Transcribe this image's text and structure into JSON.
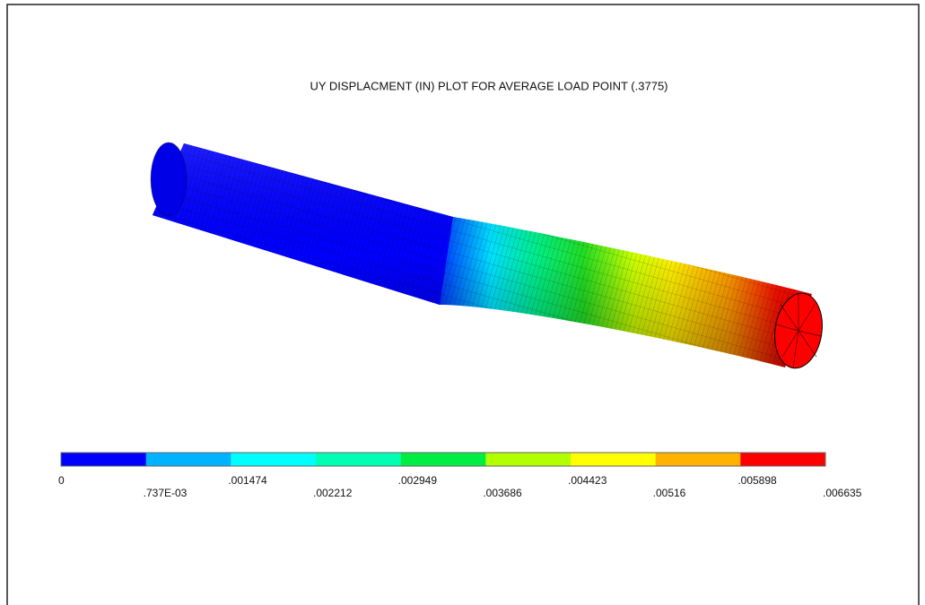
{
  "plot": {
    "title": "UY DISPLACMENT  (IN) PLOT FOR AVERAGE  LOAD  POINT (.3775)"
  },
  "legend": {
    "labels": [
      "0",
      ".737E-03",
      ".001474",
      ".002212",
      ".002949",
      ".003686",
      ".004423",
      ".00516",
      ".005898",
      ".006635"
    ],
    "colors": [
      "#0000ff",
      "#00b2ff",
      "#00ffff",
      "#00ffb2",
      "#00ee44",
      "#b2ff00",
      "#ffff00",
      "#ffb200",
      "#ff0000"
    ]
  }
}
